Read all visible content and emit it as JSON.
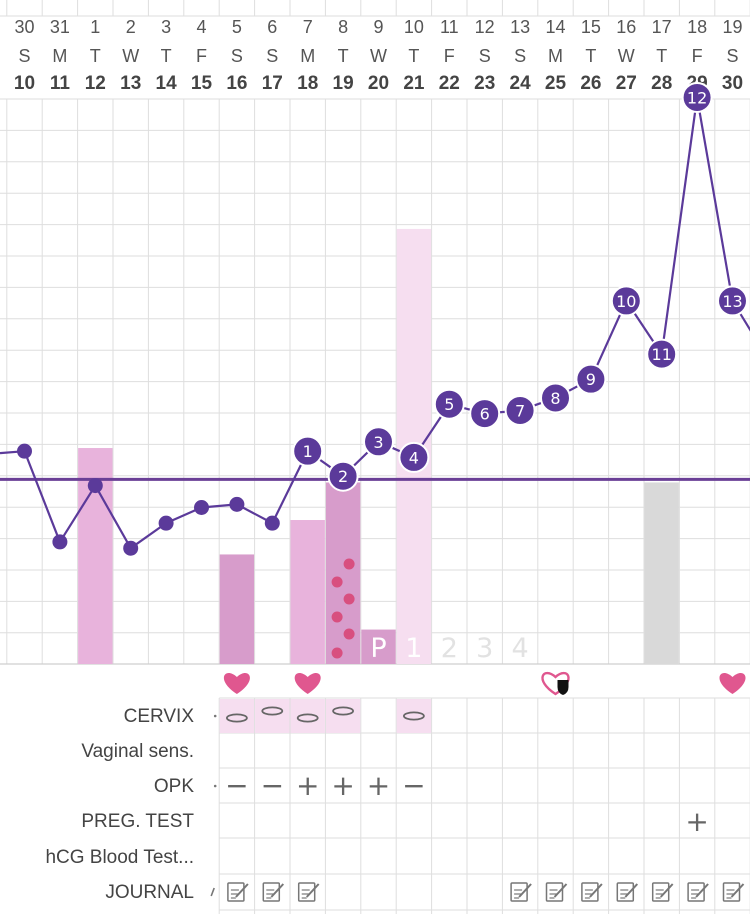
{
  "calendar_header": {
    "month_days": [
      "30",
      "31",
      "1",
      "2",
      "3",
      "4",
      "5",
      "6",
      "7",
      "8",
      "9",
      "10",
      "11",
      "12",
      "13",
      "14",
      "15",
      "16",
      "17",
      "18",
      "19"
    ],
    "weekdays": [
      "S",
      "M",
      "T",
      "W",
      "T",
      "F",
      "S",
      "S",
      "M",
      "T",
      "W",
      "T",
      "F",
      "S",
      "S",
      "M",
      "T",
      "W",
      "T",
      "F",
      "S"
    ],
    "cycle_days": [
      "10",
      "11",
      "12",
      "13",
      "14",
      "15",
      "16",
      "17",
      "18",
      "19",
      "20",
      "21",
      "22",
      "23",
      "24",
      "25",
      "26",
      "27",
      "28",
      "29",
      "30"
    ]
  },
  "chart_data": {
    "type": "line",
    "title": "",
    "xlabel": "",
    "ylabel": "",
    "x": [
      "10",
      "11",
      "12",
      "13",
      "14",
      "15",
      "16",
      "17",
      "18",
      "19",
      "20",
      "21",
      "22",
      "23",
      "24",
      "25",
      "26",
      "27",
      "28",
      "29",
      "30"
    ],
    "temperature_level": [
      0.68,
      0.39,
      0.57,
      0.37,
      0.45,
      0.5,
      0.51,
      0.45,
      0.68,
      0.6,
      0.71,
      0.66,
      0.83,
      0.8,
      0.81,
      0.85,
      0.91,
      1.16,
      0.99,
      1.81,
      1.16
    ],
    "temperature_point_labels": [
      "",
      "",
      "",
      "",
      "",
      "",
      "",
      "",
      "1",
      "2",
      "3",
      "4",
      "5",
      "6",
      "7",
      "8",
      "9",
      "10",
      "11",
      "12",
      "13"
    ],
    "coverline_level": 0.59,
    "pink_bar_levels": [
      0,
      0,
      0.69,
      0,
      0,
      0,
      0.35,
      0,
      0.46,
      0.58,
      0.11,
      1.39,
      0,
      0,
      0,
      0,
      0,
      0,
      0.58,
      0,
      0
    ],
    "bar_fill_days_dark": [
      "16",
      "19",
      "20"
    ],
    "bar_fill_days_light": [
      "21"
    ],
    "bar_fill_days_gray": [
      "28"
    ],
    "spotting_day": "19",
    "luteal_markers": {
      "start_day": "20",
      "labels": [
        "P",
        "1",
        "2",
        "3",
        "4"
      ]
    },
    "line_color": "#5b3a9a",
    "coverline_color": "#6a3f96"
  },
  "intercourse_icons": [
    {
      "day": "16",
      "style": "filled"
    },
    {
      "day": "18",
      "style": "filled"
    },
    {
      "day": "25",
      "style": "outline-shield"
    },
    {
      "day": "30",
      "style": "filled"
    }
  ],
  "rows": {
    "cervix": {
      "label": "CERVIX",
      "shaded_days": [
        "16",
        "17",
        "18",
        "19",
        "21"
      ],
      "marks": {
        "16": "low",
        "17": "high",
        "18": "low",
        "19": "high",
        "21": "mid"
      }
    },
    "vaginal": {
      "label": "Vaginal sens."
    },
    "opk": {
      "label": "OPK",
      "marks": {
        "16": "−",
        "17": "−",
        "18": "+",
        "19": "+",
        "20": "+",
        "21": "−"
      }
    },
    "preg_test": {
      "label": "PREG. TEST",
      "marks": {
        "29": "+"
      }
    },
    "hcg": {
      "label": "hCG Blood Test..."
    },
    "journal": {
      "label": "JOURNAL",
      "days": [
        "16",
        "17",
        "18",
        "24",
        "25",
        "26",
        "27",
        "28",
        "29",
        "30"
      ]
    }
  },
  "colors": {
    "temp_line": "#5b3a9a",
    "coverline": "#6a3f96",
    "pink_bar": "#e8b3dc",
    "pink_bar_dark": "#d79ccb",
    "pink_bar_light": "#f6def0",
    "gray_bar": "#d9d9d9",
    "heart": "#e0578f",
    "spot": "#d84f7f",
    "grid": "#dedede"
  }
}
